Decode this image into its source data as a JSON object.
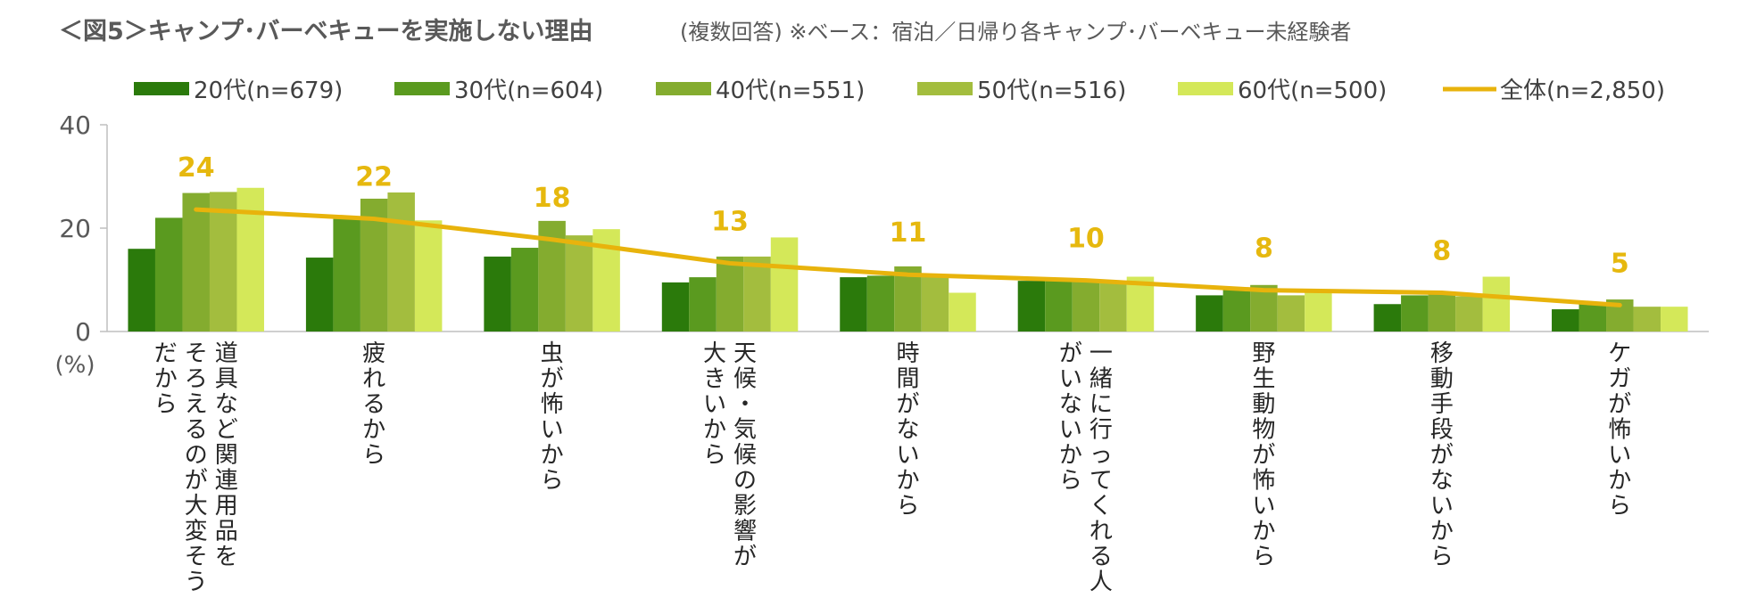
{
  "header": {
    "title": "＜図5＞キャンプ･バーベキューを実施しない理由",
    "subtitle": "(複数回答) ※ベース：宿泊／日帰り各キャンプ･バーベキュー未経験者"
  },
  "colors": {
    "series": [
      "#2B7A0B",
      "#5A9A1F",
      "#84AC2F",
      "#A3BD3E",
      "#D4E859"
    ],
    "total_line": "#E8B30C",
    "data_label": "#E6B80E",
    "axis": "#BFBFBF"
  },
  "chart_data": {
    "type": "bar",
    "title": "＜図5＞キャンプ･バーベキューを実施しない理由",
    "ylabel": "(%)",
    "ylim": [
      0,
      40
    ],
    "yticks": [
      "0",
      "20",
      "40"
    ],
    "grid": false,
    "legend_position": "top",
    "categories": [
      "道具など関連用品をそろえるのが大変そうだから",
      "疲れるから",
      "虫が怖いから",
      "天候・気候の影響が大きいから",
      "時間がないから",
      "一緒に行ってくれる人がいないから",
      "野生動物が怖いから",
      "移動手段がないから",
      "ケガが怖いから"
    ],
    "category_lines": [
      [
        "道具など関連用品を",
        "そろえるのが大変そう",
        "だから"
      ],
      [
        "疲れるから"
      ],
      [
        "虫が怖いから"
      ],
      [
        "天候・気候の影響が",
        "大きいから"
      ],
      [
        "時間がないから"
      ],
      [
        "一緒に行ってくれる人",
        "がいないから"
      ],
      [
        "野生動物が怖いから"
      ],
      [
        "移動手段がないから"
      ],
      [
        "ケガが怖いから"
      ]
    ],
    "series": [
      {
        "name": "20代(n=679)",
        "values": [
          16,
          14.3,
          14.5,
          9.5,
          10.5,
          9.8,
          7,
          5.3,
          4.3
        ]
      },
      {
        "name": "30代(n=604)",
        "values": [
          22,
          21.8,
          16.2,
          10.5,
          10.8,
          9.8,
          8.2,
          7,
          5.3
        ]
      },
      {
        "name": "40代(n=551)",
        "values": [
          26.8,
          25.7,
          21.4,
          14.5,
          12.6,
          9.8,
          9,
          7.4,
          6.2
        ]
      },
      {
        "name": "50代(n=516)",
        "values": [
          27,
          26.9,
          18.6,
          14.5,
          10.8,
          9.8,
          7,
          6.8,
          4.8
        ]
      },
      {
        "name": "60代(n=500)",
        "values": [
          27.8,
          21.5,
          19.8,
          18.2,
          7.5,
          10.6,
          8.2,
          10.6,
          4.8
        ]
      }
    ],
    "total_series": {
      "name": "全体(n=2,850)",
      "values": [
        23.6,
        21.8,
        17.8,
        13.2,
        11,
        9.9,
        8,
        7.5,
        5.1
      ],
      "labels": [
        "24",
        "22",
        "18",
        "13",
        "11",
        "10",
        "8",
        "8",
        "5"
      ]
    }
  }
}
